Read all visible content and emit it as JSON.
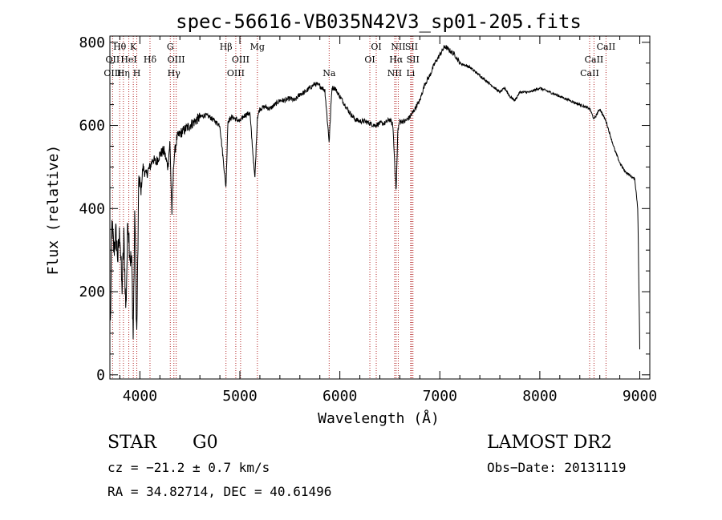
{
  "chart_data": {
    "type": "line",
    "title": "spec-56616-VB035N42V3_sp01-205.fits",
    "xlabel": "Wavelength (Å)",
    "ylabel": "Flux (relative)",
    "xlim": [
      3700,
      9100
    ],
    "ylim": [
      -10,
      815
    ],
    "x_ticks": [
      4000,
      5000,
      6000,
      7000,
      8000,
      9000
    ],
    "y_ticks": [
      0,
      200,
      400,
      600,
      800
    ],
    "series_color": "#000000",
    "line_color": "#b22222",
    "spectrum": {
      "x": [
        3705,
        3720,
        3740,
        3760,
        3780,
        3800,
        3820,
        3840,
        3860,
        3880,
        3900,
        3920,
        3933,
        3950,
        3968,
        3990,
        4010,
        4030,
        4060,
        4101,
        4130,
        4160,
        4200,
        4240,
        4280,
        4300,
        4320,
        4340,
        4370,
        4400,
        4450,
        4500,
        4550,
        4600,
        4650,
        4700,
        4750,
        4800,
        4861,
        4880,
        4920,
        4960,
        5000,
        5050,
        5100,
        5150,
        5175,
        5200,
        5250,
        5300,
        5350,
        5400,
        5450,
        5500,
        5550,
        5600,
        5650,
        5700,
        5750,
        5800,
        5850,
        5893,
        5920,
        5950,
        6000,
        6050,
        6100,
        6150,
        6200,
        6250,
        6300,
        6350,
        6400,
        6450,
        6500,
        6530,
        6563,
        6580,
        6600,
        6650,
        6700,
        6750,
        6800,
        6850,
        6900,
        6950,
        7000,
        7050,
        7100,
        7150,
        7200,
        7300,
        7400,
        7500,
        7600,
        7650,
        7700,
        7750,
        7800,
        7900,
        8000,
        8100,
        8200,
        8300,
        8400,
        8500,
        8542,
        8600,
        8662,
        8700,
        8750,
        8800,
        8850,
        8900,
        8950,
        8980,
        9000
      ],
      "y": [
        120,
        360,
        300,
        340,
        280,
        350,
        200,
        330,
        150,
        380,
        290,
        260,
        90,
        400,
        80,
        480,
        440,
        500,
        480,
        500,
        520,
        510,
        530,
        540,
        500,
        560,
        390,
        520,
        570,
        580,
        590,
        600,
        610,
        620,
        625,
        620,
        610,
        600,
        450,
        610,
        620,
        615,
        610,
        625,
        630,
        470,
        620,
        640,
        645,
        640,
        650,
        660,
        660,
        665,
        660,
        675,
        680,
        690,
        700,
        695,
        685,
        560,
        690,
        690,
        670,
        650,
        630,
        615,
        610,
        610,
        605,
        600,
        605,
        605,
        615,
        600,
        440,
        590,
        610,
        610,
        620,
        640,
        660,
        700,
        720,
        750,
        770,
        790,
        780,
        770,
        750,
        740,
        720,
        700,
        680,
        690,
        670,
        660,
        680,
        680,
        690,
        680,
        670,
        660,
        650,
        640,
        615,
        640,
        610,
        580,
        540,
        510,
        490,
        480,
        470,
        400,
        60
      ]
    },
    "lines": [
      {
        "label": "Hθ",
        "x": 3798,
        "row": 0
      },
      {
        "label": "K",
        "x": 3934,
        "row": 0
      },
      {
        "label": "OII",
        "x": 3727,
        "row": 1
      },
      {
        "label": "HeI",
        "x": 3889,
        "row": 1
      },
      {
        "label": "Hδ",
        "x": 4101,
        "row": 1
      },
      {
        "label": "OIII",
        "x": 3727,
        "row": 2
      },
      {
        "label": "Hη",
        "x": 3835,
        "row": 2
      },
      {
        "label": "H",
        "x": 3969,
        "row": 2
      },
      {
        "label": "G",
        "x": 4304,
        "row": 0
      },
      {
        "label": "OIII",
        "x": 4363,
        "row": 1
      },
      {
        "label": "Hγ",
        "x": 4340,
        "row": 2
      },
      {
        "label": "Hβ",
        "x": 4861,
        "row": 0
      },
      {
        "label": "OIII",
        "x": 5007,
        "row": 1
      },
      {
        "label": "OIII",
        "x": 4959,
        "row": 2
      },
      {
        "label": "Mg",
        "x": 5175,
        "row": 0
      },
      {
        "label": "Na",
        "x": 5893,
        "row": 2
      },
      {
        "label": "OI",
        "x": 6364,
        "row": 0
      },
      {
        "label": "OI",
        "x": 6300,
        "row": 1
      },
      {
        "label": "NII",
        "x": 6584,
        "row": 0
      },
      {
        "label": "SII",
        "x": 6717,
        "row": 0
      },
      {
        "label": "Hα",
        "x": 6563,
        "row": 1
      },
      {
        "label": "SII",
        "x": 6731,
        "row": 1
      },
      {
        "label": "NII",
        "x": 6548,
        "row": 2
      },
      {
        "label": "Li",
        "x": 6708,
        "row": 2
      },
      {
        "label": "CaII",
        "x": 8662,
        "row": 0
      },
      {
        "label": "CaII",
        "x": 8542,
        "row": 1
      },
      {
        "label": "CaII",
        "x": 8498,
        "row": 2
      }
    ],
    "grid": false,
    "legend": "none"
  },
  "info": {
    "class": "STAR",
    "subclass": "G0",
    "survey": "LAMOST DR2",
    "cz": "cz = −21.2 ± 0.7 km/s",
    "obs_date": "Obs−Date: 20131119",
    "coords": "RA =  34.82714, DEC =  40.61496"
  }
}
